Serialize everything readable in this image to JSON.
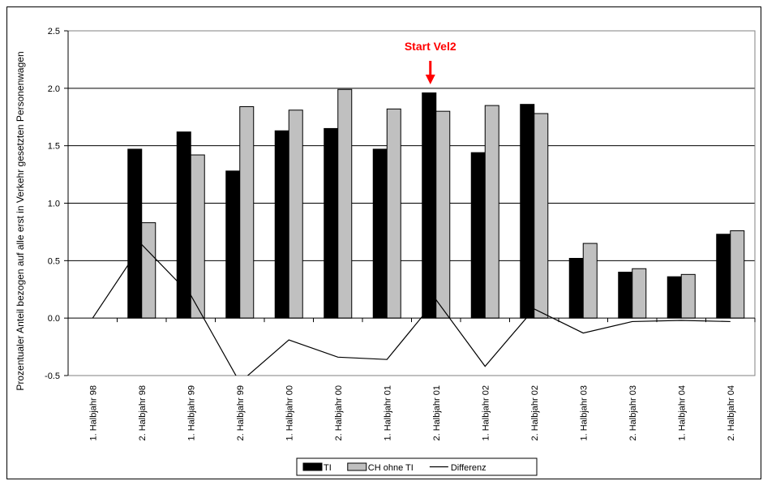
{
  "chart_data": {
    "type": "bar",
    "title": "",
    "ylabel": "Prozentualer Anteil bezogen auf alle erst in Verkehr gesetzten Personenwagen",
    "xlabel": "",
    "ylim": [
      -0.5,
      2.5
    ],
    "yticks": [
      "-0.5",
      "0.0",
      "0.5",
      "1.0",
      "1.5",
      "2.0",
      "2.5"
    ],
    "grid": "horizontal",
    "categories": [
      "1. Halbjahr 98",
      "2. Halbjahr 98",
      "1. Halbjahr 99",
      "2. Halbjahr 99",
      "1. Halbjahr 00",
      "2. Halbjahr 00",
      "1. Halbjahr 01",
      "2. Halbjahr 01",
      "1. Halbjahr 02",
      "2. Halbjahr 02",
      "1. Halbjahr 03",
      "2. Halbjahr 03",
      "1. Halbjahr 04",
      "2. Halbjahr 04"
    ],
    "series": [
      {
        "name": "TI",
        "kind": "bar",
        "color": "#000000",
        "values": [
          null,
          1.47,
          1.62,
          1.28,
          1.63,
          1.65,
          1.47,
          1.96,
          1.44,
          1.86,
          0.52,
          0.4,
          0.36,
          0.73
        ]
      },
      {
        "name": "CH ohne TI",
        "kind": "bar",
        "color": "#c0c0c0",
        "values": [
          null,
          0.83,
          1.42,
          1.84,
          1.81,
          1.99,
          1.82,
          1.8,
          1.85,
          1.78,
          0.65,
          0.43,
          0.38,
          0.76
        ]
      },
      {
        "name": "Differenz",
        "kind": "line",
        "color": "#000000",
        "values": [
          0.0,
          0.64,
          0.2,
          -0.56,
          -0.19,
          -0.34,
          -0.36,
          0.16,
          -0.42,
          0.08,
          -0.13,
          -0.03,
          -0.02,
          -0.03
        ]
      }
    ],
    "annotation": {
      "text": "Start Vel2",
      "category_index": 7,
      "color": "#ff0000"
    },
    "legend_position": "bottom"
  }
}
